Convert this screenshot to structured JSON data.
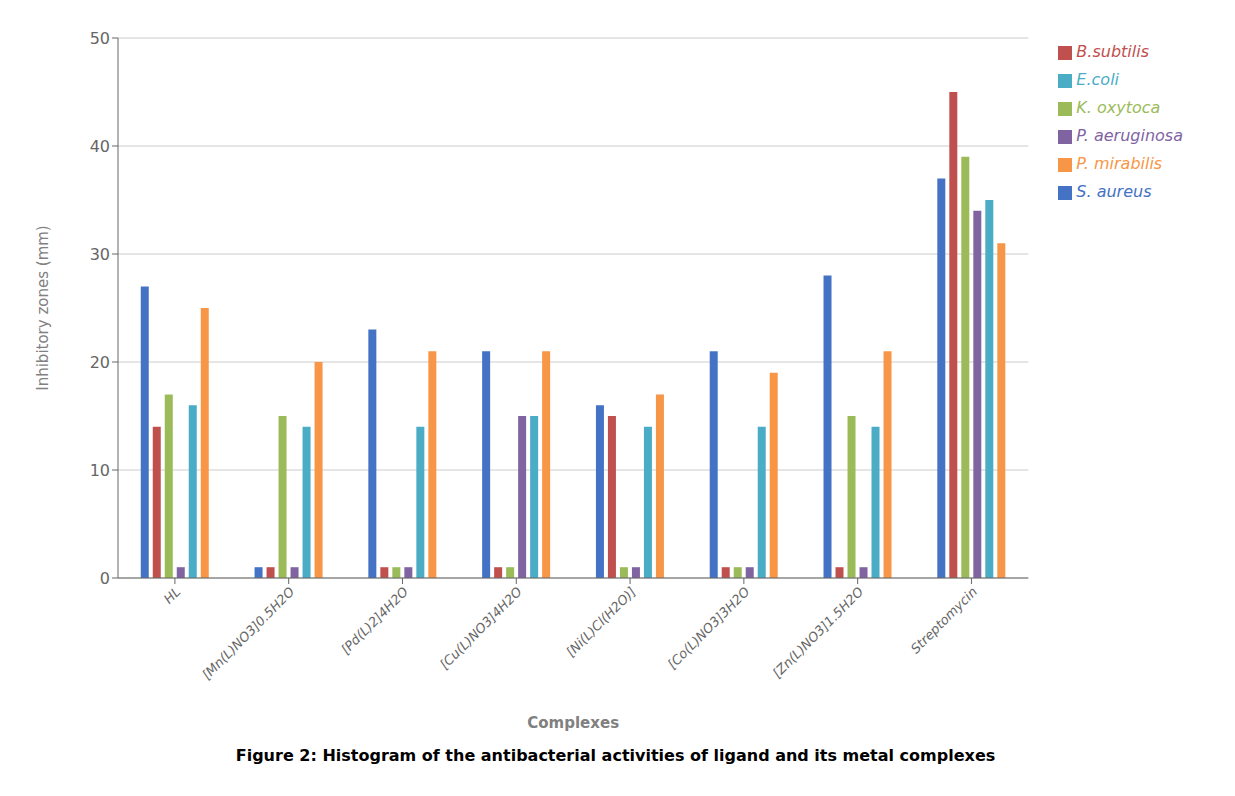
{
  "chart_data": {
    "type": "bar",
    "title": "Figure 2: Histogram of the antibacterial activities of ligand and its metal complexes",
    "xlabel": "Complexes",
    "ylabel": "Inhibitory zones (mm)",
    "categories": [
      "HL",
      "[Mn(L)NO3]0.5H2O",
      "[Pd(L)2]4H2O",
      "[Cu(L)NO3]4H2O",
      "[Ni(L)Cl(H2O)]",
      "[Co(L)NO3]3H2O",
      "[Zn(L)NO3]1.5H2O",
      "Streptomycin"
    ],
    "series": [
      {
        "name": "S. aureus",
        "color": "#4472C4",
        "values": [
          27,
          1,
          23,
          21,
          16,
          21,
          28,
          37
        ]
      },
      {
        "name": "B.subtilis",
        "color": "#C0504D",
        "values": [
          14,
          1,
          1,
          1,
          15,
          1,
          1,
          45
        ]
      },
      {
        "name": "K. oxytoca",
        "color": "#9BBB59",
        "values": [
          17,
          15,
          1,
          1,
          1,
          1,
          15,
          39
        ]
      },
      {
        "name": "P. aeruginosa",
        "color": "#8064A2",
        "values": [
          1,
          1,
          1,
          15,
          1,
          1,
          1,
          34
        ]
      },
      {
        "name": "E.coli",
        "color": "#4BACC6",
        "values": [
          16,
          14,
          14,
          15,
          14,
          14,
          14,
          35
        ]
      },
      {
        "name": "P. mirabilis",
        "color": "#F79646",
        "values": [
          25,
          20,
          21,
          21,
          17,
          19,
          21,
          31
        ]
      }
    ],
    "ylim": [
      0,
      50
    ],
    "yticks": [
      0,
      10,
      20,
      30,
      40,
      50
    ],
    "grid": true,
    "legend": "right"
  }
}
